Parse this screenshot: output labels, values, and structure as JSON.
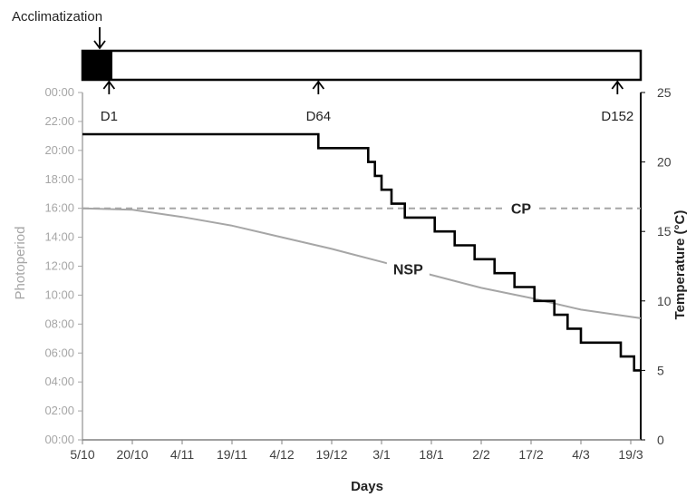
{
  "chart_data": {
    "type": "line",
    "title": "",
    "xlabel": "Days",
    "ylabel_left": "Photoperiod",
    "ylabel_right": "Temperature (°C)",
    "x_ticks": [
      "5/10",
      "20/10",
      "4/11",
      "19/11",
      "4/12",
      "19/12",
      "3/1",
      "18/1",
      "2/2",
      "17/2",
      "4/3",
      "19/3"
    ],
    "x_range": [
      "5/10",
      "22/3"
    ],
    "y_left_ticks": [
      "00:00",
      "02:00",
      "04:00",
      "06:00",
      "08:00",
      "10:00",
      "12:00",
      "14:00",
      "16:00",
      "18:00",
      "20:00",
      "22:00",
      "00:00"
    ],
    "y_left_range_hours": [
      0,
      24
    ],
    "y_right_ticks": [
      "0",
      "5",
      "10",
      "15",
      "20",
      "25"
    ],
    "y_right_range": [
      0,
      25
    ],
    "series": [
      {
        "name": "CP",
        "axis": "left",
        "unit": "hours",
        "color": "#a6a6a6",
        "style": "dashed",
        "x_days": [
          0,
          168
        ],
        "y": [
          16,
          16
        ]
      },
      {
        "name": "NSP",
        "axis": "left",
        "unit": "hours",
        "color": "#a6a6a6",
        "style": "solid",
        "x_days": [
          0,
          15,
          30,
          45,
          60,
          75,
          90,
          105,
          120,
          135,
          150,
          168
        ],
        "y": [
          16.0,
          15.9,
          15.4,
          14.8,
          14.0,
          13.2,
          12.3,
          11.4,
          10.5,
          9.8,
          9.0,
          8.4
        ]
      },
      {
        "name": "Temperature",
        "axis": "right",
        "unit": "°C",
        "color": "#000000",
        "style": "step",
        "x_days": [
          0,
          71,
          71,
          86,
          86,
          88,
          88,
          90,
          90,
          93,
          93,
          97,
          97,
          106,
          106,
          112,
          112,
          118,
          118,
          124,
          124,
          130,
          130,
          136,
          136,
          142,
          142,
          146,
          146,
          150,
          150,
          162,
          162,
          166,
          166,
          168
        ],
        "y": [
          22,
          22,
          21,
          21,
          20,
          20,
          19,
          19,
          18,
          18,
          17,
          17,
          16,
          16,
          15,
          15,
          14,
          14,
          13,
          13,
          12,
          12,
          11,
          11,
          10,
          10,
          9,
          9,
          8,
          8,
          7,
          7,
          6,
          6,
          5,
          5
        ]
      }
    ],
    "annotations": [
      {
        "text": "CP",
        "x_day": 132,
        "y_hours": 16
      },
      {
        "text": "NSP",
        "x_day": 98,
        "y_hours": 11.8
      }
    ],
    "timeline": {
      "top_label": "Acclimatization",
      "markers": [
        {
          "label": "D1",
          "x_day": 8
        },
        {
          "label": "D64",
          "x_day": 71
        },
        {
          "label": "D152",
          "x_day": 161
        }
      ],
      "acclimatization_end_day": 9
    },
    "grid": false,
    "legend": "none"
  }
}
